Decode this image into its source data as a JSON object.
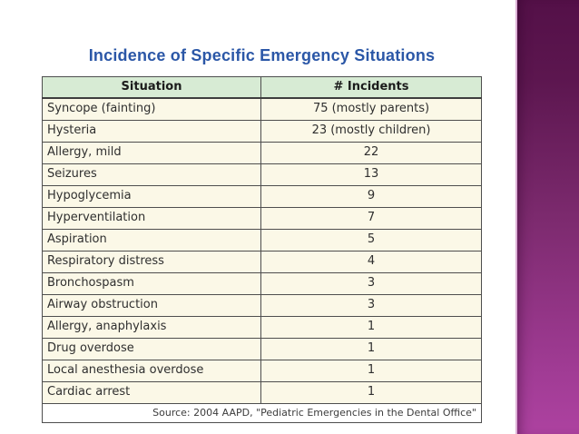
{
  "slide": {
    "title": "Incidence of Specific Emergency Situations"
  },
  "table": {
    "columns": [
      "Situation",
      "# Incidents"
    ],
    "rows": [
      [
        "Syncope (fainting)",
        "75 (mostly parents)"
      ],
      [
        "Hysteria",
        "23 (mostly children)"
      ],
      [
        "Allergy, mild",
        "22"
      ],
      [
        "Seizures",
        "13"
      ],
      [
        "Hypoglycemia",
        "9"
      ],
      [
        "Hyperventilation",
        "7"
      ],
      [
        "Aspiration",
        "5"
      ],
      [
        "Respiratory distress",
        "4"
      ],
      [
        "Bronchospasm",
        "3"
      ],
      [
        "Airway obstruction",
        "3"
      ],
      [
        "Allergy, anaphylaxis",
        "1"
      ],
      [
        "Drug overdose",
        "1"
      ],
      [
        "Local anesthesia overdose",
        "1"
      ],
      [
        "Cardiac arrest",
        "1"
      ]
    ],
    "source": "Source: 2004 AAPD, \"Pediatric Emergencies in the Dental Office\""
  },
  "chart_data": {
    "type": "table",
    "title": "Incidence of Specific Emergency Situations",
    "columns": [
      "Situation",
      "# Incidents"
    ],
    "categories": [
      "Syncope (fainting)",
      "Hysteria",
      "Allergy, mild",
      "Seizures",
      "Hypoglycemia",
      "Hyperventilation",
      "Aspiration",
      "Respiratory distress",
      "Bronchospasm",
      "Airway obstruction",
      "Allergy, anaphylaxis",
      "Drug overdose",
      "Local anesthesia overdose",
      "Cardiac arrest"
    ],
    "values": [
      75,
      23,
      22,
      13,
      9,
      7,
      5,
      4,
      3,
      3,
      1,
      1,
      1,
      1
    ],
    "value_labels": [
      "75 (mostly parents)",
      "23 (mostly children)",
      "22",
      "13",
      "9",
      "7",
      "5",
      "4",
      "3",
      "3",
      "1",
      "1",
      "1",
      "1"
    ],
    "source": "Source: 2004 AAPD, \"Pediatric Emergencies in the Dental Office\""
  },
  "colors": {
    "title_text": "#2b57a7",
    "header_bg": "#d7ebd4",
    "row_bg": "#fbf8e7",
    "table_border": "#4e4e4e",
    "strip_gradient_top": "#541048",
    "strip_gradient_mid": "#7c2a6e",
    "strip_gradient_bottom": "#ad42a0",
    "strip_edge_highlight": "#ddb0d6"
  }
}
